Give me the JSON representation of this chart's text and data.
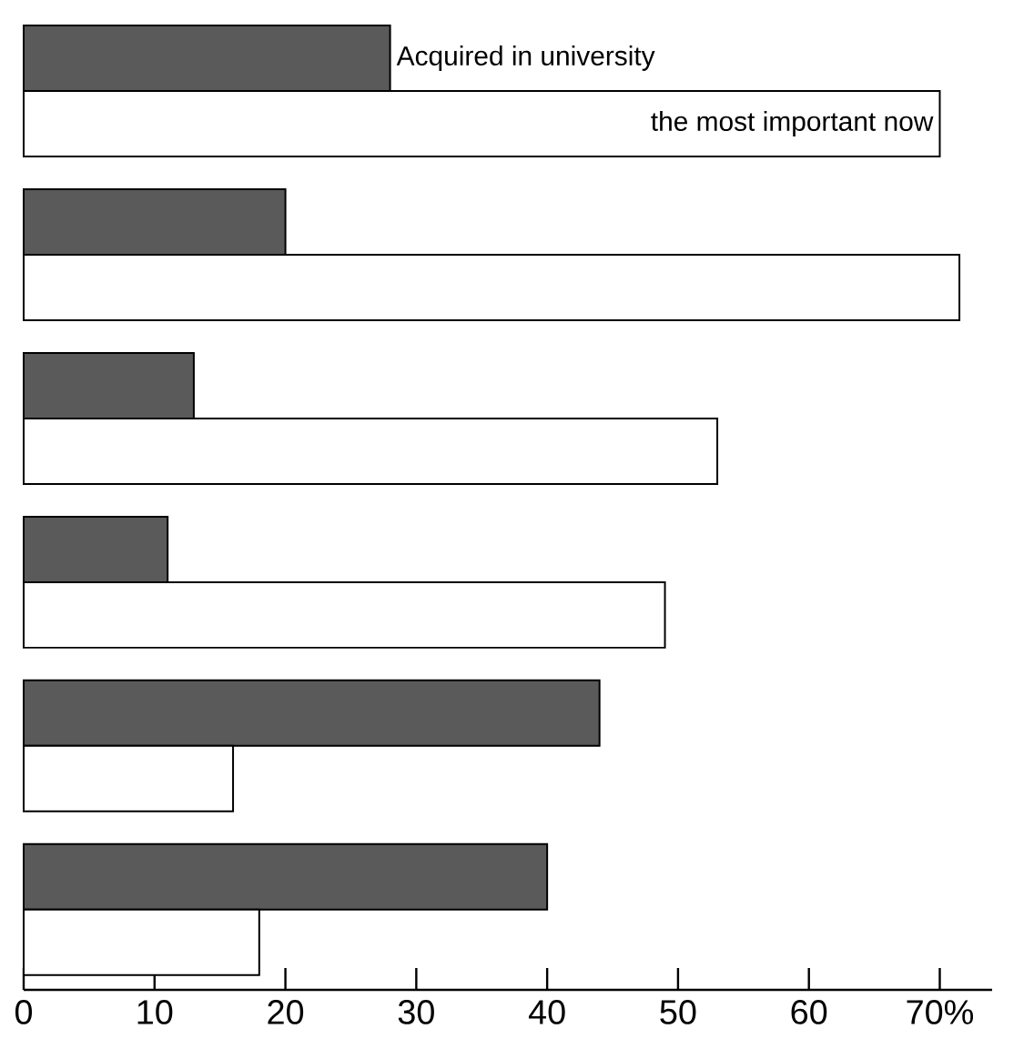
{
  "chart_data": {
    "type": "bar",
    "orientation": "horizontal",
    "categories": [
      null,
      null,
      null,
      null,
      null,
      null
    ],
    "series": [
      {
        "name": "Acquired in university",
        "color": "#5a5a5a",
        "values": [
          28,
          20,
          13,
          11,
          44,
          40
        ]
      },
      {
        "name": "the most important now",
        "color": "#ffffff",
        "values": [
          70,
          71.5,
          53,
          49,
          16,
          18
        ]
      }
    ],
    "xlim": [
      0,
      74
    ],
    "xticks": [
      0,
      10,
      20,
      30,
      40,
      50,
      60,
      {
        "value": 70,
        "label": "70%"
      }
    ]
  }
}
